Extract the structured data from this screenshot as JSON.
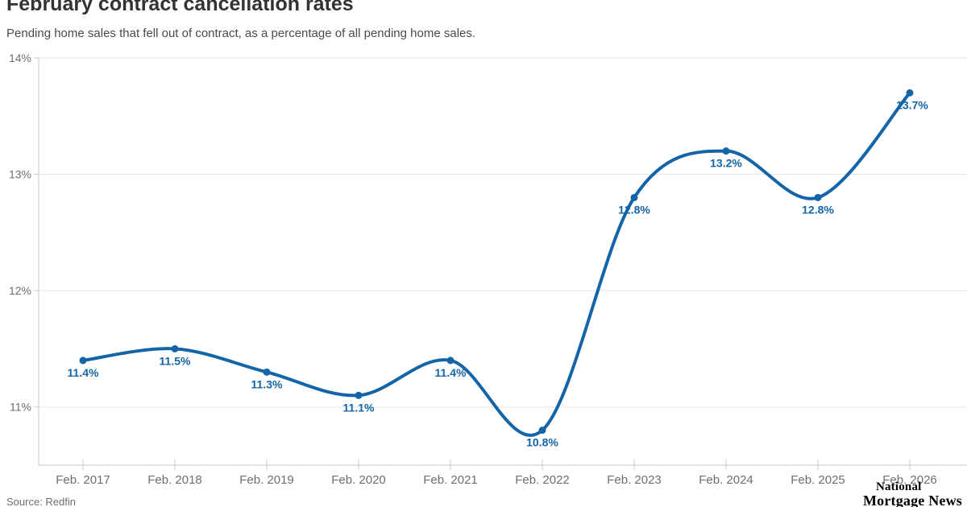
{
  "header": {
    "title": "February contract cancellation rates",
    "subtitle": "Pending home sales that fell out of contract, as a percentage of all pending home sales."
  },
  "footer": {
    "source": "Source: Redfin",
    "logo_line1": "National",
    "logo_line2": "Mortgage News"
  },
  "colors": {
    "line": "#1465a8",
    "marker": "#1465a8",
    "data_label": "#1465a8",
    "grid": "#e6e6e6",
    "axis": "#c8c8c8",
    "axis_label": "#6e6e6e",
    "title": "#333333",
    "subtitle": "#4a4a4a"
  },
  "chart_data": {
    "type": "line",
    "title": "February contract cancellation rates",
    "subtitle": "Pending home sales that fell out of contract, as a percentage of all pending home sales.",
    "categories": [
      "Feb. 2017",
      "Feb. 2018",
      "Feb. 2019",
      "Feb. 2020",
      "Feb. 2021",
      "Feb. 2022",
      "Feb. 2023",
      "Feb. 2024",
      "Feb. 2025",
      "Feb. 2026"
    ],
    "values": [
      11.4,
      11.5,
      11.3,
      11.1,
      11.4,
      10.8,
      12.8,
      13.2,
      12.8,
      13.7
    ],
    "data_labels": [
      "11.4%",
      "11.5%",
      "11.3%",
      "11.1%",
      "11.4%",
      "10.8%",
      "12.8%",
      "13.2%",
      "12.8%",
      "13.7%"
    ],
    "xlabel": "",
    "ylabel": "",
    "ylim": [
      10.5,
      14
    ],
    "ytick_values": [
      11,
      12,
      13,
      14
    ],
    "ytick_labels": [
      "11%",
      "12%",
      "13%",
      "14%"
    ],
    "grid": "horizontal",
    "line_style": "smooth",
    "markers": true,
    "legend": "none",
    "source": "Source: Redfin"
  }
}
